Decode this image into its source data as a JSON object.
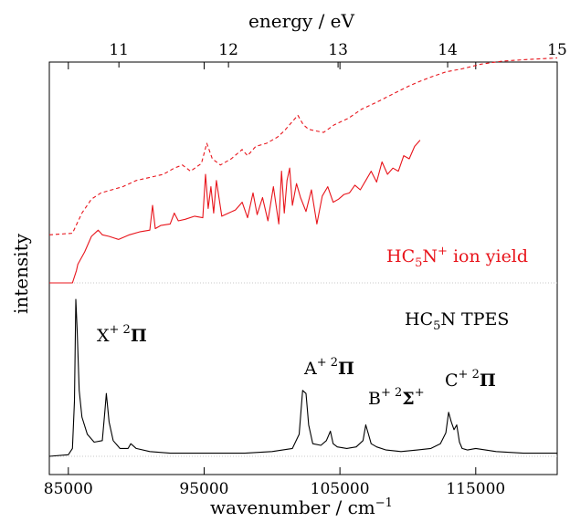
{
  "chart_data": {
    "type": "line",
    "xlabel": "wavenumber / cm",
    "xlabel_sup": "−1",
    "top_xlabel": "energy / eV",
    "ylabel": "intensity",
    "xlim": [
      83600,
      121000
    ],
    "top_xlim": [
      10.365,
      15.0
    ],
    "bottom_ticks": [
      85000,
      95000,
      105000,
      115000
    ],
    "top_ticks": [
      11,
      12,
      13,
      14,
      15
    ],
    "grid": false,
    "colors": {
      "tpes": "#000000",
      "ion_solid": "#e8141b",
      "ion_dashed": "#e8141b",
      "zero": "#c8c8c8"
    },
    "labels": {
      "ion_yield": {
        "pre": "HC",
        "sub": "5",
        "mid": "N",
        "sup": "+",
        "post": " ion yield"
      },
      "tpes": {
        "pre": "HC",
        "sub": "5",
        "post": "N TPES"
      },
      "bands": [
        {
          "state": "X",
          "sup": "+ 2",
          "term": "Π",
          "x": 85700
        },
        {
          "state": "A",
          "sup": "+ 2",
          "term": "Π",
          "x": 102500
        },
        {
          "state": "B",
          "sup": "+ 2",
          "term": "Σ",
          "sup2": "+",
          "x": 107100
        },
        {
          "state": "C",
          "sup": "+ 2",
          "term": "Π",
          "x": 113100
        }
      ]
    },
    "series": [
      {
        "style": "solid",
        "x": [
          83600,
          85300,
          85600,
          85700,
          86200,
          86700,
          87200,
          87500,
          88000,
          88700,
          89500,
          90300,
          91000,
          91200,
          91400,
          91800,
          92500,
          92800,
          93100,
          93600,
          94300,
          94900,
          95100,
          95300,
          95500,
          95700,
          95900,
          96300,
          96800,
          97300,
          97800,
          98200,
          98600,
          98900,
          99300,
          99700,
          100100,
          100500,
          100700,
          100900,
          101100,
          101300,
          101500,
          101800,
          102100,
          102500,
          102900,
          103300,
          103700,
          104100,
          104500,
          104900,
          105300,
          105700,
          106100,
          106500,
          106900,
          107300,
          107700,
          108100,
          108500,
          108900,
          109300,
          109700,
          110100,
          110500,
          110900
        ],
        "y": [
          0.0,
          0.0,
          0.08,
          0.12,
          0.2,
          0.3,
          0.34,
          0.31,
          0.3,
          0.28,
          0.31,
          0.33,
          0.34,
          0.5,
          0.35,
          0.37,
          0.38,
          0.45,
          0.4,
          0.41,
          0.43,
          0.42,
          0.7,
          0.48,
          0.62,
          0.45,
          0.66,
          0.43,
          0.45,
          0.47,
          0.52,
          0.42,
          0.58,
          0.44,
          0.55,
          0.4,
          0.62,
          0.38,
          0.72,
          0.45,
          0.66,
          0.74,
          0.5,
          0.64,
          0.55,
          0.46,
          0.6,
          0.38,
          0.56,
          0.62,
          0.52,
          0.54,
          0.57,
          0.58,
          0.63,
          0.6,
          0.66,
          0.72,
          0.65,
          0.78,
          0.7,
          0.74,
          0.72,
          0.82,
          0.8,
          0.88,
          0.92
        ]
      },
      {
        "style": "dashed",
        "x": [
          83600,
          85300,
          86000,
          86700,
          87400,
          88200,
          89000,
          90000,
          91000,
          92000,
          92800,
          93400,
          94000,
          94800,
          95200,
          95600,
          96200,
          97000,
          97800,
          98200,
          98800,
          99600,
          100400,
          100900,
          101400,
          101900,
          102300,
          102700,
          103200,
          103800,
          104600,
          105600,
          106600,
          107600,
          108500,
          109400,
          110100,
          110900,
          111800,
          112800,
          114000,
          115400,
          117000,
          118800,
          121000
        ],
        "y": [
          0.31,
          0.32,
          0.45,
          0.54,
          0.58,
          0.6,
          0.62,
          0.66,
          0.68,
          0.7,
          0.74,
          0.76,
          0.72,
          0.77,
          0.9,
          0.8,
          0.76,
          0.8,
          0.86,
          0.82,
          0.88,
          0.9,
          0.94,
          0.98,
          1.03,
          1.08,
          1.02,
          0.99,
          0.98,
          0.97,
          1.02,
          1.06,
          1.12,
          1.16,
          1.2,
          1.24,
          1.27,
          1.3,
          1.33,
          1.36,
          1.38,
          1.41,
          1.43,
          1.44,
          1.45
        ]
      },
      {
        "style": "tpes",
        "x": [
          83600,
          85000,
          85300,
          85450,
          85550,
          85650,
          85800,
          86000,
          86400,
          86900,
          87500,
          87700,
          87800,
          88000,
          88300,
          88800,
          89400,
          89600,
          90000,
          91000,
          92500,
          94000,
          96000,
          98000,
          100000,
          101500,
          102000,
          102250,
          102500,
          102700,
          103000,
          103600,
          104000,
          104300,
          104500,
          104800,
          105500,
          106200,
          106700,
          106900,
          107100,
          107300,
          107700,
          108400,
          109500,
          110700,
          111700,
          112400,
          112800,
          113000,
          113200,
          113400,
          113600,
          113800,
          114000,
          114400,
          115000,
          116500,
          118500,
          121000
        ],
        "y": [
          0.0,
          0.01,
          0.05,
          0.35,
          1.0,
          0.8,
          0.42,
          0.25,
          0.14,
          0.09,
          0.1,
          0.3,
          0.4,
          0.22,
          0.1,
          0.05,
          0.05,
          0.08,
          0.05,
          0.03,
          0.02,
          0.02,
          0.02,
          0.02,
          0.03,
          0.05,
          0.14,
          0.42,
          0.4,
          0.2,
          0.08,
          0.07,
          0.1,
          0.16,
          0.08,
          0.06,
          0.05,
          0.06,
          0.1,
          0.2,
          0.14,
          0.08,
          0.06,
          0.04,
          0.03,
          0.04,
          0.05,
          0.08,
          0.15,
          0.28,
          0.22,
          0.17,
          0.2,
          0.09,
          0.05,
          0.04,
          0.05,
          0.03,
          0.02,
          0.02
        ]
      }
    ]
  }
}
